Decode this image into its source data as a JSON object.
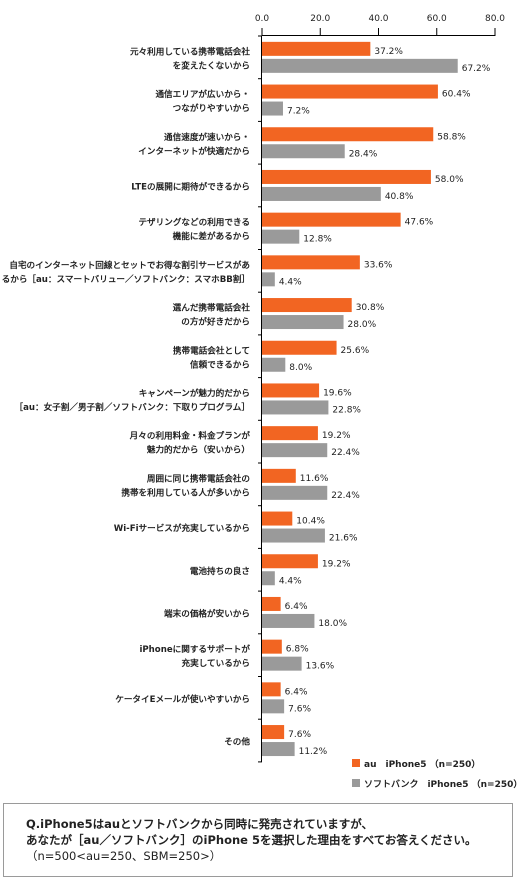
{
  "colors": {
    "au": "#f26522",
    "softbank": "#9a9a9a",
    "axis": "#000000"
  },
  "chart_data": {
    "type": "bar",
    "orientation": "horizontal",
    "xlim": [
      0,
      80
    ],
    "ticks": [
      "0.0",
      "20.0",
      "40.0",
      "60.0",
      "80.0"
    ],
    "categories": [
      [
        "元々利用している携帯電話会社",
        "を変えたくないから"
      ],
      [
        "通信エリアが広いから・",
        "つながりやすいから"
      ],
      [
        "通信速度が速いから・",
        "インターネットが快適だから"
      ],
      [
        "LTEの展開に期待ができるから"
      ],
      [
        "テザリングなどの利用できる",
        "機能に差があるから"
      ],
      [
        "自宅のインターネット回線とセットでお得な割引サービスがあ",
        "るから［au：スマートバリュー／ソフトバンク：スマホBB割］"
      ],
      [
        "選んだ携帯電話会社",
        "の方が好きだから"
      ],
      [
        "携帯電話会社として",
        "信頼できるから"
      ],
      [
        "キャンペーンが魅力的だから",
        "［au：女子割／男子割／ソフトバンク：下取りプログラム］"
      ],
      [
        "月々の利用料金・料金プランが",
        "魅力的だから（安いから）"
      ],
      [
        "周囲に同じ携帯電話会社の",
        "携帯を利用している人が多いから"
      ],
      [
        "Wi-Fiサービスが充実しているから"
      ],
      [
        "電池持ちの良さ"
      ],
      [
        "端末の価格が安いから"
      ],
      [
        "iPhoneに関するサポートが",
        "充実しているから"
      ],
      [
        "ケータイEメールが使いやすいから"
      ],
      [
        "その他"
      ]
    ],
    "series": [
      {
        "name": "au　iPhone5 （n=250）",
        "values": [
          37.2,
          60.4,
          58.8,
          58.0,
          47.6,
          33.6,
          30.8,
          25.6,
          19.6,
          19.2,
          11.6,
          10.4,
          19.2,
          6.4,
          6.8,
          6.4,
          7.6
        ],
        "labels": [
          "37.2%",
          "60.4%",
          "58.8%",
          "58.0%",
          "47.6%",
          "33.6%",
          "30.8%",
          "25.6%",
          "19.6%",
          "19.2%",
          "11.6%",
          "10.4%",
          "19.2%",
          "6.4%",
          "6.8%",
          "6.4%",
          "7.6%"
        ]
      },
      {
        "name": "ソフトバンク　iPhone5 （n=250）",
        "values": [
          67.2,
          7.2,
          28.4,
          40.8,
          12.8,
          4.4,
          28.0,
          8.0,
          22.8,
          22.4,
          22.4,
          21.6,
          4.4,
          18.0,
          13.6,
          7.6,
          11.2
        ],
        "labels": [
          "67.2%",
          "7.2%",
          "28.4%",
          "40.8%",
          "12.8%",
          "4.4%",
          "28.0%",
          "8.0%",
          "22.8%",
          "22.4%",
          "22.4%",
          "21.6%",
          "4.4%",
          "18.0%",
          "13.6%",
          "7.6%",
          "11.2%"
        ]
      }
    ],
    "legend_position": "bottom-right",
    "grid": false
  },
  "question": {
    "line1": "Q.iPhone5はauとソフトバンクから同時に発売されていますが、",
    "line2": "あなたが［au／ソフトバンク］のiPhone 5を選択した理由をすべてお答えください。",
    "line3": "（n=500<au=250、SBM=250>）"
  }
}
